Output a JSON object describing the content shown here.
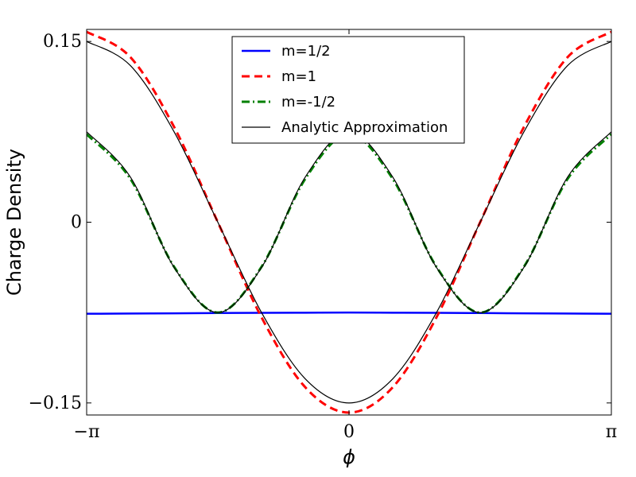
{
  "chart_data": {
    "type": "line",
    "xlabel": "ϕ",
    "ylabel": "Charge Density",
    "xlim": [
      -3.14159,
      3.14159
    ],
    "ylim": [
      -0.16,
      0.16
    ],
    "x_ticks": [
      {
        "value": -3.14159,
        "label": "−π"
      },
      {
        "value": 0,
        "label": "0"
      },
      {
        "value": 3.14159,
        "label": "π"
      }
    ],
    "y_ticks": [
      {
        "value": -0.15,
        "label": "−0.15"
      },
      {
        "value": 0,
        "label": "0"
      },
      {
        "value": 0.15,
        "label": "0.15"
      }
    ],
    "legend_position": "top-center",
    "grid": false,
    "x": [
      -3.14159,
      -2.61799,
      -2.0944,
      -1.5708,
      -1.0472,
      -0.5236,
      0,
      0.5236,
      1.0472,
      1.5708,
      2.0944,
      2.61799,
      3.14159
    ],
    "series": [
      {
        "name": "m=1/2",
        "color": "#0000ff",
        "style": "solid",
        "values": [
          -0.076,
          -0.0758,
          -0.0756,
          -0.0754,
          -0.0752,
          -0.0751,
          -0.075,
          -0.0751,
          -0.0752,
          -0.0754,
          -0.0756,
          -0.0758,
          -0.076
        ]
      },
      {
        "name": "m=1",
        "color": "#ff0000",
        "style": "dashed",
        "values": [
          0.158,
          0.137,
          0.079,
          0.0,
          -0.079,
          -0.137,
          -0.158,
          -0.137,
          -0.079,
          0.0,
          0.079,
          0.137,
          0.158
        ]
      },
      {
        "name": "m=-1/2",
        "color": "#008000",
        "style": "dashdot",
        "values": [
          0.073,
          0.036,
          -0.037,
          -0.075,
          -0.037,
          0.036,
          0.073,
          0.036,
          -0.037,
          -0.075,
          -0.037,
          0.036,
          0.073
        ]
      },
      {
        "name": "Analytic Approximation",
        "color": "#000000",
        "style": "solid",
        "values": [
          0.15,
          0.13,
          0.075,
          0.0,
          -0.075,
          -0.13,
          -0.15,
          -0.13,
          -0.075,
          0.0,
          0.075,
          0.13,
          0.15
        ]
      },
      {
        "name": "",
        "color": "#000000",
        "style": "solid",
        "values": [
          0.075,
          0.0375,
          -0.0375,
          -0.075,
          -0.0375,
          0.0375,
          0.075,
          0.0375,
          -0.0375,
          -0.075,
          -0.0375,
          0.0375,
          0.075
        ]
      }
    ]
  }
}
